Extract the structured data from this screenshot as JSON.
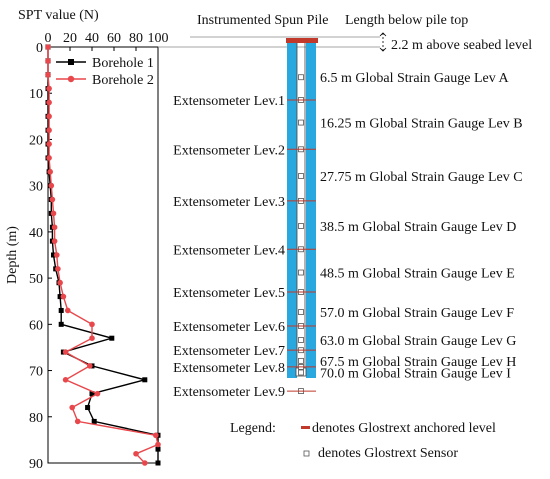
{
  "chart_data": {
    "type": "line",
    "title": "SPT value (N)",
    "xlabel": "SPT value (N)",
    "ylabel": "Depth (m)",
    "xlim": [
      0,
      100
    ],
    "ylim": [
      0,
      90
    ],
    "x_ticks": [
      "0",
      "20",
      "40",
      "60",
      "80",
      "100"
    ],
    "y_ticks": [
      "0",
      "10",
      "20",
      "30",
      "40",
      "50",
      "60",
      "70",
      "80",
      "90"
    ],
    "legend": "top-right",
    "grid": false,
    "series": [
      {
        "name": "Borehole 1",
        "color": "#000000",
        "marker": "square",
        "points": [
          [
            0,
            0
          ],
          [
            0,
            3
          ],
          [
            0,
            6
          ],
          [
            0,
            9
          ],
          [
            0,
            12
          ],
          [
            0,
            15
          ],
          [
            0,
            18
          ],
          [
            0,
            21
          ],
          [
            0,
            24
          ],
          [
            1,
            27
          ],
          [
            2,
            30
          ],
          [
            3,
            33
          ],
          [
            3,
            36
          ],
          [
            4,
            39
          ],
          [
            4,
            42
          ],
          [
            5,
            45
          ],
          [
            7,
            48
          ],
          [
            10,
            51
          ],
          [
            11,
            54
          ],
          [
            12,
            57
          ],
          [
            12,
            60
          ],
          [
            58,
            63
          ],
          [
            14,
            66
          ],
          [
            40,
            69
          ],
          [
            88,
            72
          ],
          [
            40,
            75
          ],
          [
            36,
            78
          ],
          [
            42,
            81
          ],
          [
            100,
            84
          ],
          [
            100,
            87
          ],
          [
            100,
            90
          ]
        ]
      },
      {
        "name": "Borehole 2",
        "color": "#e8474b",
        "marker": "circle",
        "points": [
          [
            0,
            0
          ],
          [
            0,
            3
          ],
          [
            0,
            6
          ],
          [
            1,
            9
          ],
          [
            1,
            12
          ],
          [
            1,
            15
          ],
          [
            1,
            18
          ],
          [
            1,
            21
          ],
          [
            1,
            24
          ],
          [
            2,
            27
          ],
          [
            3,
            30
          ],
          [
            4,
            33
          ],
          [
            5,
            36
          ],
          [
            6,
            39
          ],
          [
            6,
            42
          ],
          [
            8,
            45
          ],
          [
            9,
            48
          ],
          [
            11,
            51
          ],
          [
            14,
            54
          ],
          [
            18,
            57
          ],
          [
            40,
            60
          ],
          [
            40,
            63
          ],
          [
            16,
            66
          ],
          [
            38,
            69
          ],
          [
            16,
            72
          ],
          [
            45,
            75
          ],
          [
            22,
            78
          ],
          [
            27,
            81
          ],
          [
            98,
            84
          ],
          [
            100,
            86
          ],
          [
            80,
            88
          ],
          [
            88,
            90
          ]
        ]
      }
    ]
  },
  "diagram": {
    "pile_title": "Instrumented Spun Pile",
    "length_label": "Length below pile top",
    "above_seabed": "2.2 m above seabed level",
    "gauges": [
      {
        "label": "6.5 m Global Strain Gauge Lev A",
        "depth": 6.5
      },
      {
        "label": "16.25 m Global Strain Gauge Lev B",
        "depth": 16.25
      },
      {
        "label": "27.75 m Global Strain Gauge Lev C",
        "depth": 27.75
      },
      {
        "label": "38.5 m Global Strain Gauge Lev D",
        "depth": 38.5
      },
      {
        "label": "48.5 m Global Strain Gauge Lev E",
        "depth": 48.5
      },
      {
        "label": "57.0 m Global Strain Gauge Lev F",
        "depth": 57.0
      },
      {
        "label": "63.0 m Global Strain Gauge Lev G",
        "depth": 63.0
      },
      {
        "label": "67.5 m Global Strain Gauge Lev H",
        "depth": 67.5
      },
      {
        "label": "70.0 m Global Strain Gauge Lev I",
        "depth": 70.0
      }
    ],
    "extensometers": [
      {
        "label": "Extensometer Lev.1",
        "depth": 11.4
      },
      {
        "label": "Extensometer Lev.2",
        "depth": 22.0
      },
      {
        "label": "Extensometer Lev.3",
        "depth": 33.1
      },
      {
        "label": "Extensometer Lev.4",
        "depth": 43.5
      },
      {
        "label": "Extensometer Lev.5",
        "depth": 52.7
      },
      {
        "label": "Extensometer Lev.6",
        "depth": 60.0
      },
      {
        "label": "Extensometer Lev.7",
        "depth": 65.2
      },
      {
        "label": "Extensometer Lev.8",
        "depth": 68.8
      },
      {
        "label": "Extensometer Lev.9",
        "depth": 74.0
      }
    ],
    "legend_title": "Legend:",
    "legend_anchor": "denotes Glostrext anchored level",
    "legend_sensor": "denotes Glostrext Sensor",
    "pile_color": "#29a8df",
    "anchor_color": "#c0392b"
  }
}
